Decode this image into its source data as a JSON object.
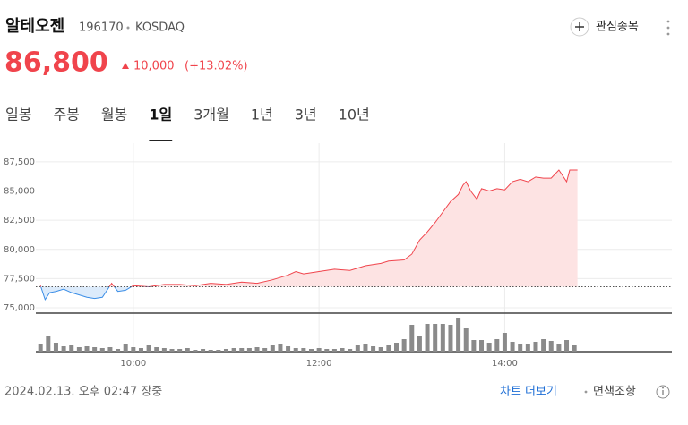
{
  "header": {
    "name": "알테오젠",
    "code": "196170",
    "market": "KOSDAQ",
    "price": "86,800",
    "change": "10,000",
    "change_pct": "(+13.02%)",
    "watch_label": "관심종목"
  },
  "tabs": [
    "일봉",
    "주봉",
    "월봉",
    "1일",
    "3개월",
    "1년",
    "3년",
    "10년"
  ],
  "selected_tab": 3,
  "chart_data": {
    "type": "line",
    "x": [
      "09:00",
      "09:03",
      "09:06",
      "09:10",
      "09:15",
      "09:20",
      "09:25",
      "09:30",
      "09:35",
      "09:40",
      "09:46",
      "09:50",
      "09:55",
      "10:00",
      "10:10",
      "10:20",
      "10:30",
      "10:40",
      "10:50",
      "11:00",
      "11:10",
      "11:20",
      "11:30",
      "11:40",
      "11:45",
      "11:50",
      "12:00",
      "12:10",
      "12:20",
      "12:30",
      "12:40",
      "12:45",
      "12:55",
      "13:00",
      "13:05",
      "13:10",
      "13:15",
      "13:20",
      "13:25",
      "13:30",
      "13:33",
      "13:35",
      "13:38",
      "13:42",
      "13:45",
      "13:50",
      "13:55",
      "14:00",
      "14:05",
      "14:10",
      "14:15",
      "14:20",
      "14:25",
      "14:30",
      "14:35",
      "14:40",
      "14:42",
      "14:45",
      "14:47"
    ],
    "values": [
      76900,
      75700,
      76300,
      76400,
      76600,
      76300,
      76100,
      75900,
      75800,
      75900,
      77100,
      76400,
      76500,
      76900,
      76800,
      77000,
      77000,
      76900,
      77100,
      77000,
      77200,
      77100,
      77400,
      77800,
      78100,
      77900,
      78100,
      78300,
      78200,
      78600,
      78800,
      79000,
      79100,
      79600,
      80800,
      81500,
      82300,
      83200,
      84100,
      84700,
      85500,
      85800,
      85000,
      84300,
      85200,
      85000,
      85200,
      85100,
      85800,
      86000,
      85800,
      86200,
      86100,
      86100,
      86800,
      85800,
      86800,
      86800,
      86800
    ],
    "baseline": 76800,
    "up_color": "#f0444c",
    "down_color": "#3a8de6",
    "xlim": [
      "08:57",
      "15:48"
    ],
    "xticks": [
      "10:00",
      "12:00",
      "14:00"
    ],
    "ylim": [
      74540,
      89100
    ],
    "yticks": [
      {
        "value": 75000,
        "label": "75,000"
      },
      {
        "value": 77500,
        "label": "77,500"
      },
      {
        "value": 80000,
        "label": "80,000"
      },
      {
        "value": 82500,
        "label": "82,500"
      },
      {
        "value": 85000,
        "label": "85,000"
      },
      {
        "value": 87500,
        "label": "87,500"
      }
    ],
    "grid": true,
    "volume": {
      "color": "#8a8a8a",
      "vlim": [
        0,
        41
      ],
      "x": [
        "09:00",
        "09:05",
        "09:10",
        "09:15",
        "09:20",
        "09:25",
        "09:30",
        "09:35",
        "09:40",
        "09:45",
        "09:50",
        "09:55",
        "10:00",
        "10:05",
        "10:10",
        "10:15",
        "10:20",
        "10:25",
        "10:30",
        "10:35",
        "10:40",
        "10:45",
        "10:50",
        "10:55",
        "11:00",
        "11:05",
        "11:10",
        "11:15",
        "11:20",
        "11:25",
        "11:30",
        "11:35",
        "11:40",
        "11:45",
        "11:50",
        "11:55",
        "12:00",
        "12:05",
        "12:10",
        "12:15",
        "12:20",
        "12:25",
        "12:30",
        "12:35",
        "12:40",
        "12:45",
        "12:50",
        "12:55",
        "13:00",
        "13:05",
        "13:10",
        "13:15",
        "13:20",
        "13:25",
        "13:30",
        "13:35",
        "13:40",
        "13:45",
        "13:50",
        "13:55",
        "14:00",
        "14:05",
        "14:10",
        "14:15",
        "14:20",
        "14:25",
        "14:30",
        "14:35",
        "14:40",
        "14:45"
      ],
      "values": [
        8,
        18,
        10,
        6,
        7,
        5,
        6,
        5,
        4,
        5,
        3,
        8,
        5,
        4,
        7,
        5,
        4,
        3,
        3,
        4,
        2,
        3,
        2,
        2,
        3,
        4,
        4,
        4,
        5,
        4,
        7,
        9,
        6,
        4,
        4,
        3,
        4,
        3,
        3,
        4,
        3,
        7,
        9,
        6,
        5,
        7,
        10,
        14,
        30,
        17,
        31,
        31,
        31,
        30,
        38,
        26,
        13,
        13,
        10,
        14,
        21,
        11,
        8,
        9,
        11,
        14,
        12,
        9,
        13,
        7
      ]
    }
  },
  "footer": {
    "timestamp": "2024.02.13. 오후 02:47 장중",
    "more_chart": "차트 더보기",
    "disclaimer": "면책조항"
  }
}
